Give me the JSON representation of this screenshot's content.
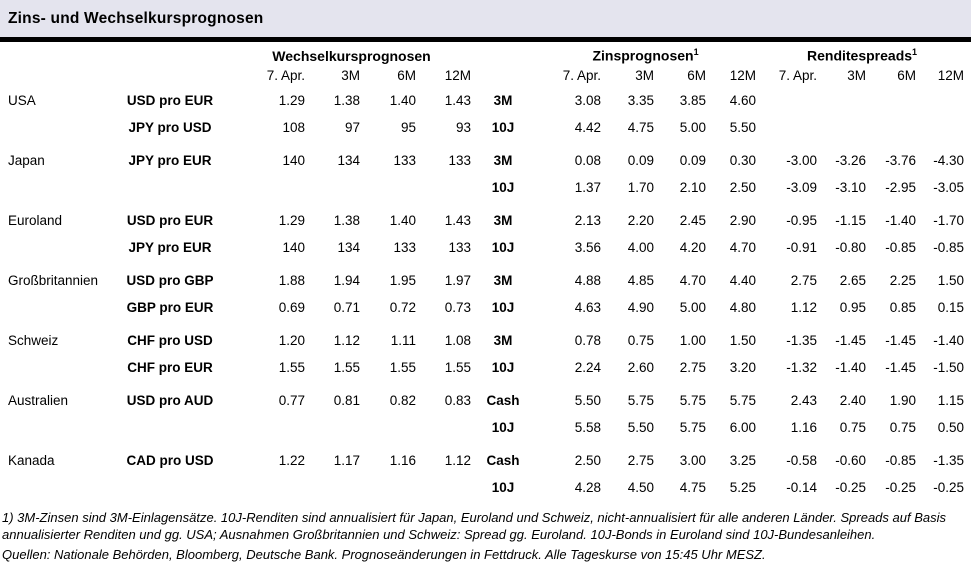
{
  "page": {
    "title": "Zins- und Wechselkursprognosen"
  },
  "table": {
    "group_headers": {
      "fx": "Wechselkursprognosen",
      "rates": "Zinsprognosen",
      "spreads": "Renditespreads",
      "sup_marker": "1"
    },
    "col_headers": [
      "7. Apr.",
      "3M",
      "6M",
      "12M"
    ]
  },
  "rows": [
    {
      "country": "USA",
      "lines": [
        {
          "pair": "USD pro EUR",
          "fx": [
            "1.29",
            "1.38",
            "1.40",
            "1.43"
          ],
          "tenor": "3M",
          "rates": [
            "3.08",
            "3.35",
            "3.85",
            "4.60"
          ],
          "spreads": [
            "",
            "",
            "",
            ""
          ]
        },
        {
          "pair": "JPY pro USD",
          "fx": [
            "108",
            "97",
            "95",
            "93"
          ],
          "tenor": "10J",
          "rates": [
            "4.42",
            "4.75",
            "5.00",
            "5.50"
          ],
          "spreads": [
            "",
            "",
            "",
            ""
          ]
        }
      ]
    },
    {
      "country": "Japan",
      "lines": [
        {
          "pair": "JPY pro EUR",
          "fx": [
            "140",
            "134",
            "133",
            "133"
          ],
          "tenor": "3M",
          "rates": [
            "0.08",
            "0.09",
            "0.09",
            "0.30"
          ],
          "spreads": [
            "-3.00",
            "-3.26",
            "-3.76",
            "-4.30"
          ]
        },
        {
          "pair": "",
          "fx": [
            "",
            "",
            "",
            ""
          ],
          "tenor": "10J",
          "rates": [
            "1.37",
            "1.70",
            "2.10",
            "2.50"
          ],
          "spreads": [
            "-3.09",
            "-3.10",
            "-2.95",
            "-3.05"
          ]
        }
      ]
    },
    {
      "country": "Euroland",
      "lines": [
        {
          "pair": "USD pro EUR",
          "fx": [
            "1.29",
            "1.38",
            "1.40",
            "1.43"
          ],
          "tenor": "3M",
          "rates": [
            "2.13",
            "2.20",
            "2.45",
            "2.90"
          ],
          "spreads": [
            "-0.95",
            "-1.15",
            "-1.40",
            "-1.70"
          ]
        },
        {
          "pair": "JPY pro EUR",
          "fx": [
            "140",
            "134",
            "133",
            "133"
          ],
          "tenor": "10J",
          "rates": [
            "3.56",
            "4.00",
            "4.20",
            "4.70"
          ],
          "spreads": [
            "-0.91",
            "-0.80",
            "-0.85",
            "-0.85"
          ]
        }
      ]
    },
    {
      "country": "Großbritannien",
      "lines": [
        {
          "pair": "USD pro GBP",
          "fx": [
            "1.88",
            "1.94",
            "1.95",
            "1.97"
          ],
          "tenor": "3M",
          "rates": [
            "4.88",
            "4.85",
            "4.70",
            "4.40"
          ],
          "spreads": [
            "2.75",
            "2.65",
            "2.25",
            "1.50"
          ]
        },
        {
          "pair": "GBP pro EUR",
          "fx": [
            "0.69",
            "0.71",
            "0.72",
            "0.73"
          ],
          "tenor": "10J",
          "rates": [
            "4.63",
            "4.90",
            "5.00",
            "4.80"
          ],
          "spreads": [
            "1.12",
            "0.95",
            "0.85",
            "0.15"
          ]
        }
      ]
    },
    {
      "country": "Schweiz",
      "lines": [
        {
          "pair": "CHF pro USD",
          "fx": [
            "1.20",
            "1.12",
            "1.11",
            "1.08"
          ],
          "tenor": "3M",
          "rates": [
            "0.78",
            "0.75",
            "1.00",
            "1.50"
          ],
          "spreads": [
            "-1.35",
            "-1.45",
            "-1.45",
            "-1.40"
          ]
        },
        {
          "pair": "CHF pro EUR",
          "fx": [
            "1.55",
            "1.55",
            "1.55",
            "1.55"
          ],
          "tenor": "10J",
          "rates": [
            "2.24",
            "2.60",
            "2.75",
            "3.20"
          ],
          "spreads": [
            "-1.32",
            "-1.40",
            "-1.45",
            "-1.50"
          ]
        }
      ]
    },
    {
      "country": "Australien",
      "lines": [
        {
          "pair": "USD pro AUD",
          "fx": [
            "0.77",
            "0.81",
            "0.82",
            "0.83"
          ],
          "tenor": "Cash",
          "rates": [
            "5.50",
            "5.75",
            "5.75",
            "5.75"
          ],
          "spreads": [
            "2.43",
            "2.40",
            "1.90",
            "1.15"
          ]
        },
        {
          "pair": "",
          "fx": [
            "",
            "",
            "",
            ""
          ],
          "tenor": "10J",
          "rates": [
            "5.58",
            "5.50",
            "5.75",
            "6.00"
          ],
          "spreads": [
            "1.16",
            "0.75",
            "0.75",
            "0.50"
          ]
        }
      ]
    },
    {
      "country": "Kanada",
      "lines": [
        {
          "pair": "CAD pro USD",
          "fx": [
            "1.22",
            "1.17",
            "1.16",
            "1.12"
          ],
          "tenor": "Cash",
          "rates": [
            "2.50",
            "2.75",
            "3.00",
            "3.25"
          ],
          "spreads": [
            "-0.58",
            "-0.60",
            "-0.85",
            "-1.35"
          ]
        },
        {
          "pair": "",
          "fx": [
            "",
            "",
            "",
            ""
          ],
          "tenor": "10J",
          "rates": [
            "4.28",
            "4.50",
            "4.75",
            "5.25"
          ],
          "spreads": [
            "-0.14",
            "-0.25",
            "-0.25",
            "-0.25"
          ]
        }
      ]
    }
  ],
  "footnotes": {
    "note1": "1) 3M-Zinsen sind 3M-Einlagensätze. 10J-Renditen sind annualisiert für Japan, Euroland und Schweiz, nicht-annualisiert für alle anderen Länder. Spreads auf Basis annualisierter Renditen und gg. USA; Ausnahmen Großbritannien und Schweiz: Spread gg. Euroland. 10J-Bonds in Euroland sind 10J-Bundesanleihen.",
    "sources": "Quellen: Nationale Behörden, Bloomberg, Deutsche Bank. Prognoseänderungen in Fettdruck. Alle Tageskurse von 15:45 Uhr MESZ."
  },
  "colors": {
    "title_bg": "#e4e4ee",
    "rule": "#000000",
    "text": "#000000"
  }
}
